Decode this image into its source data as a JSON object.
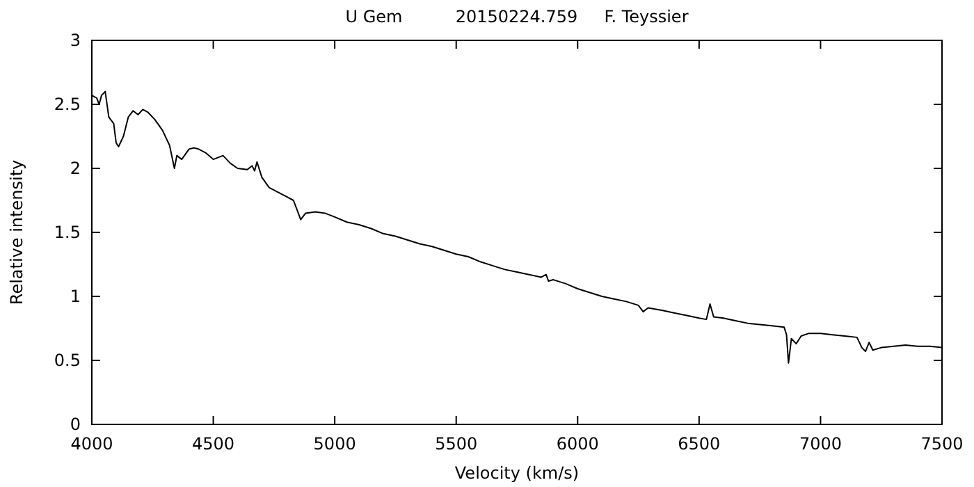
{
  "chart_data": {
    "type": "line",
    "title": "U Gem          20150224.759     F. Teyssier",
    "xlabel": "Velocity (km/s)",
    "ylabel": "Relative intensity",
    "xlim": [
      4000,
      7500
    ],
    "xticks": [
      4000,
      4500,
      5000,
      5500,
      6000,
      6500,
      7000,
      7500
    ],
    "ylim": [
      0,
      3
    ],
    "yticks": [
      0,
      0.5,
      1,
      1.5,
      2,
      2.5,
      3
    ],
    "grid": false,
    "marker": "none",
    "line_style": "solid",
    "series": [
      {
        "color": "#000000",
        "x": [
          4000,
          4020,
          4030,
          4040,
          4055,
          4070,
          4090,
          4100,
          4110,
          4130,
          4150,
          4170,
          4190,
          4210,
          4230,
          4260,
          4290,
          4320,
          4340,
          4350,
          4370,
          4400,
          4420,
          4440,
          4470,
          4500,
          4540,
          4570,
          4600,
          4640,
          4660,
          4670,
          4680,
          4700,
          4730,
          4760,
          4800,
          4830,
          4860,
          4880,
          4920,
          4960,
          5000,
          5050,
          5100,
          5150,
          5200,
          5250,
          5300,
          5350,
          5400,
          5450,
          5500,
          5550,
          5600,
          5650,
          5700,
          5750,
          5800,
          5850,
          5870,
          5880,
          5900,
          5950,
          6000,
          6050,
          6100,
          6150,
          6200,
          6250,
          6270,
          6290,
          6350,
          6400,
          6450,
          6500,
          6530,
          6545,
          6560,
          6600,
          6650,
          6700,
          6750,
          6800,
          6850,
          6860,
          6868,
          6880,
          6900,
          6920,
          6950,
          7000,
          7050,
          7100,
          7150,
          7170,
          7185,
          7200,
          7215,
          7250,
          7300,
          7350,
          7400,
          7450,
          7500
        ],
        "values": [
          2.57,
          2.55,
          2.5,
          2.57,
          2.6,
          2.4,
          2.35,
          2.2,
          2.17,
          2.25,
          2.4,
          2.45,
          2.42,
          2.46,
          2.44,
          2.38,
          2.3,
          2.18,
          2.0,
          2.1,
          2.07,
          2.15,
          2.16,
          2.15,
          2.12,
          2.07,
          2.1,
          2.04,
          2.0,
          1.99,
          2.02,
          1.98,
          2.05,
          1.93,
          1.85,
          1.82,
          1.78,
          1.75,
          1.6,
          1.65,
          1.66,
          1.65,
          1.62,
          1.58,
          1.56,
          1.53,
          1.49,
          1.47,
          1.44,
          1.41,
          1.39,
          1.36,
          1.33,
          1.31,
          1.27,
          1.24,
          1.21,
          1.19,
          1.17,
          1.15,
          1.17,
          1.12,
          1.13,
          1.1,
          1.06,
          1.03,
          1.0,
          0.98,
          0.96,
          0.93,
          0.88,
          0.91,
          0.89,
          0.87,
          0.85,
          0.83,
          0.82,
          0.94,
          0.84,
          0.83,
          0.81,
          0.79,
          0.78,
          0.77,
          0.76,
          0.7,
          0.48,
          0.67,
          0.63,
          0.69,
          0.71,
          0.71,
          0.7,
          0.69,
          0.68,
          0.6,
          0.57,
          0.64,
          0.58,
          0.6,
          0.61,
          0.62,
          0.61,
          0.61,
          0.6
        ]
      }
    ]
  }
}
